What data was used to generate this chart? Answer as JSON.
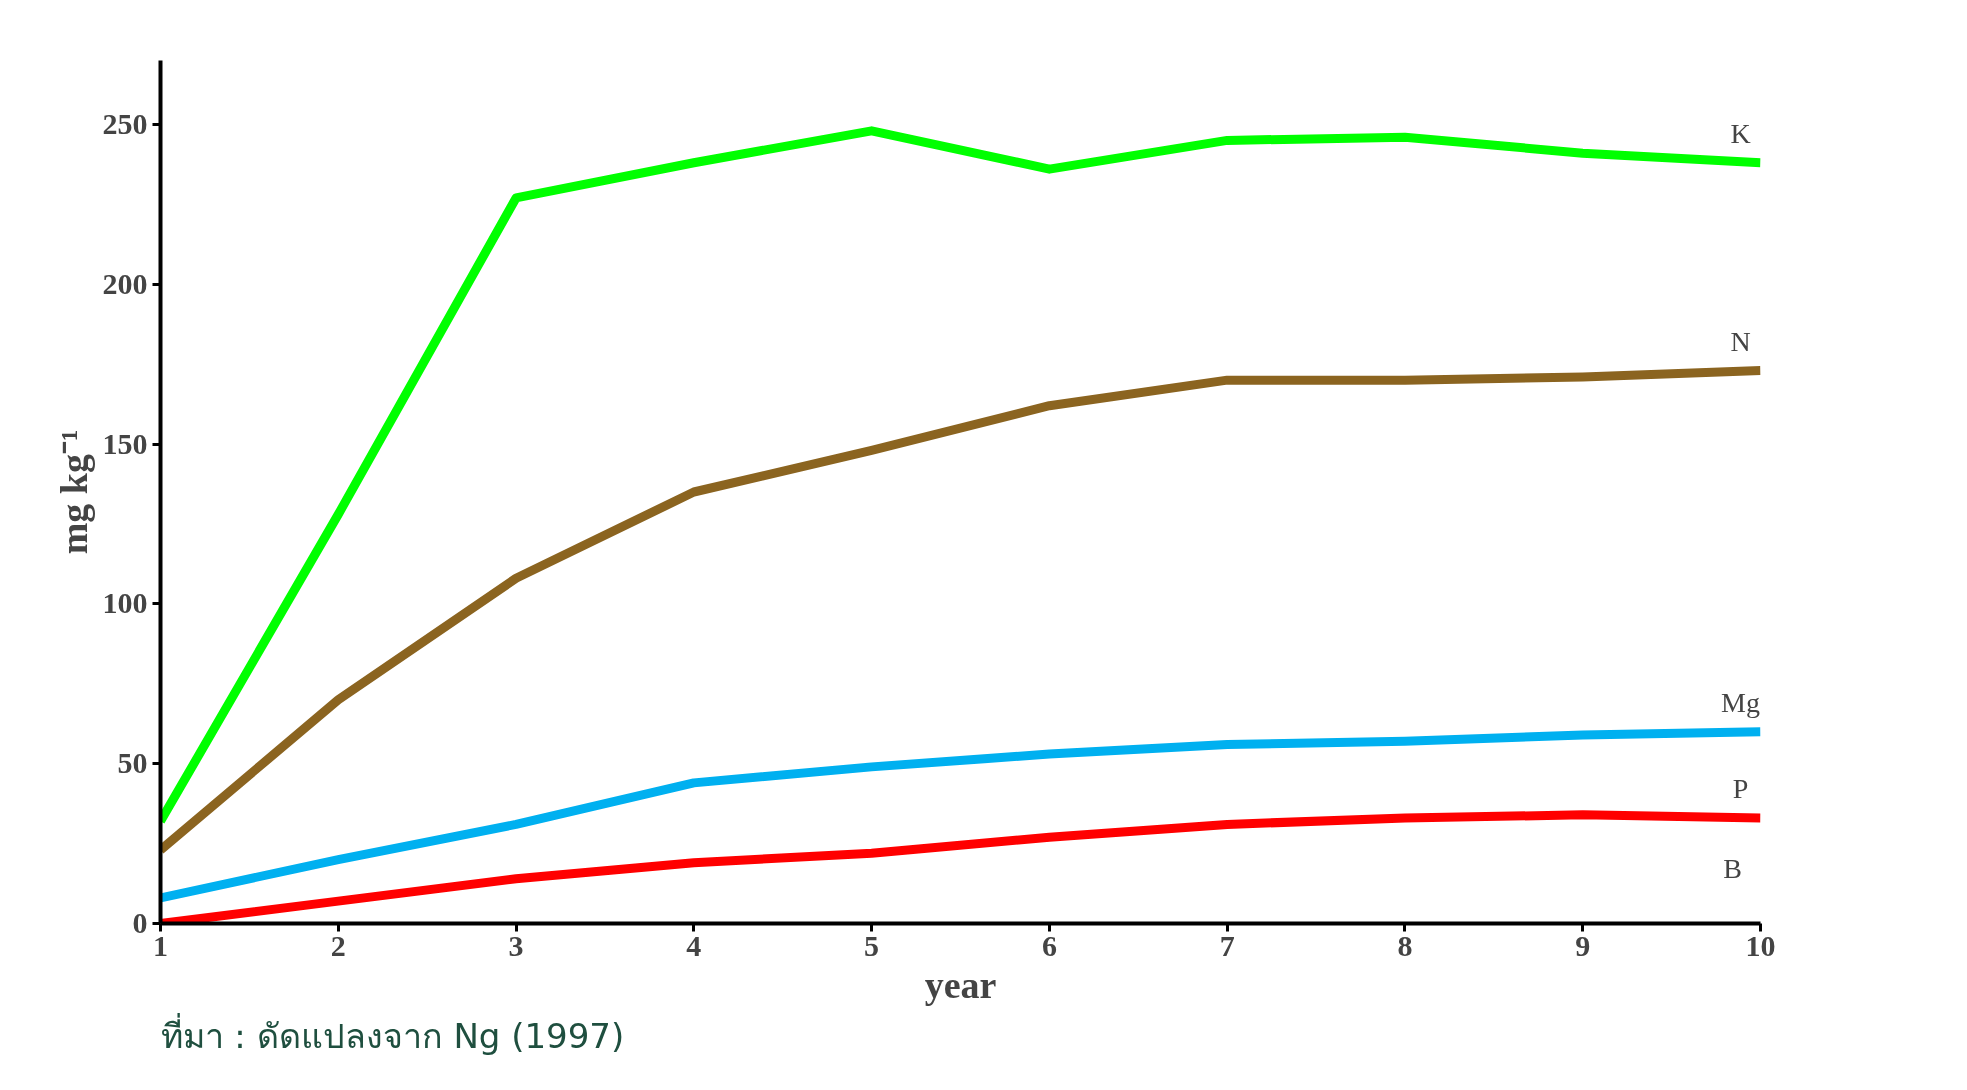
{
  "chart_data": {
    "type": "line",
    "xlabel": "year",
    "ylabel": "mg kg⁻¹",
    "x": [
      1,
      2,
      3,
      4,
      5,
      6,
      7,
      8,
      9,
      10
    ],
    "series": [
      {
        "name": "K",
        "color": "#00ff00",
        "values": [
          32,
          128,
          227,
          238,
          248,
          236,
          245,
          246,
          241,
          238
        ]
      },
      {
        "name": "N",
        "color": "#8b6420",
        "values": [
          23,
          70,
          108,
          135,
          148,
          162,
          170,
          170,
          171,
          173
        ]
      },
      {
        "name": "Mg",
        "color": "#00b0f0",
        "values": [
          8,
          20,
          31,
          44,
          49,
          53,
          56,
          57,
          59,
          60
        ]
      },
      {
        "name": "P",
        "color": "#ff0000",
        "values": [
          0,
          7,
          14,
          19,
          22,
          27,
          31,
          33,
          34,
          33
        ]
      }
    ],
    "xlim": [
      1,
      10
    ],
    "ylim": [
      0,
      270
    ],
    "xticks": [
      1,
      2,
      3,
      4,
      5,
      6,
      7,
      8,
      9,
      10
    ],
    "yticks": [
      0,
      50,
      100,
      150,
      200,
      250
    ],
    "marker": "none",
    "line_style": "solid",
    "annotations": [
      "B",
      "ที่มา : ดัดแปลงจาก Ng (1997)"
    ]
  }
}
